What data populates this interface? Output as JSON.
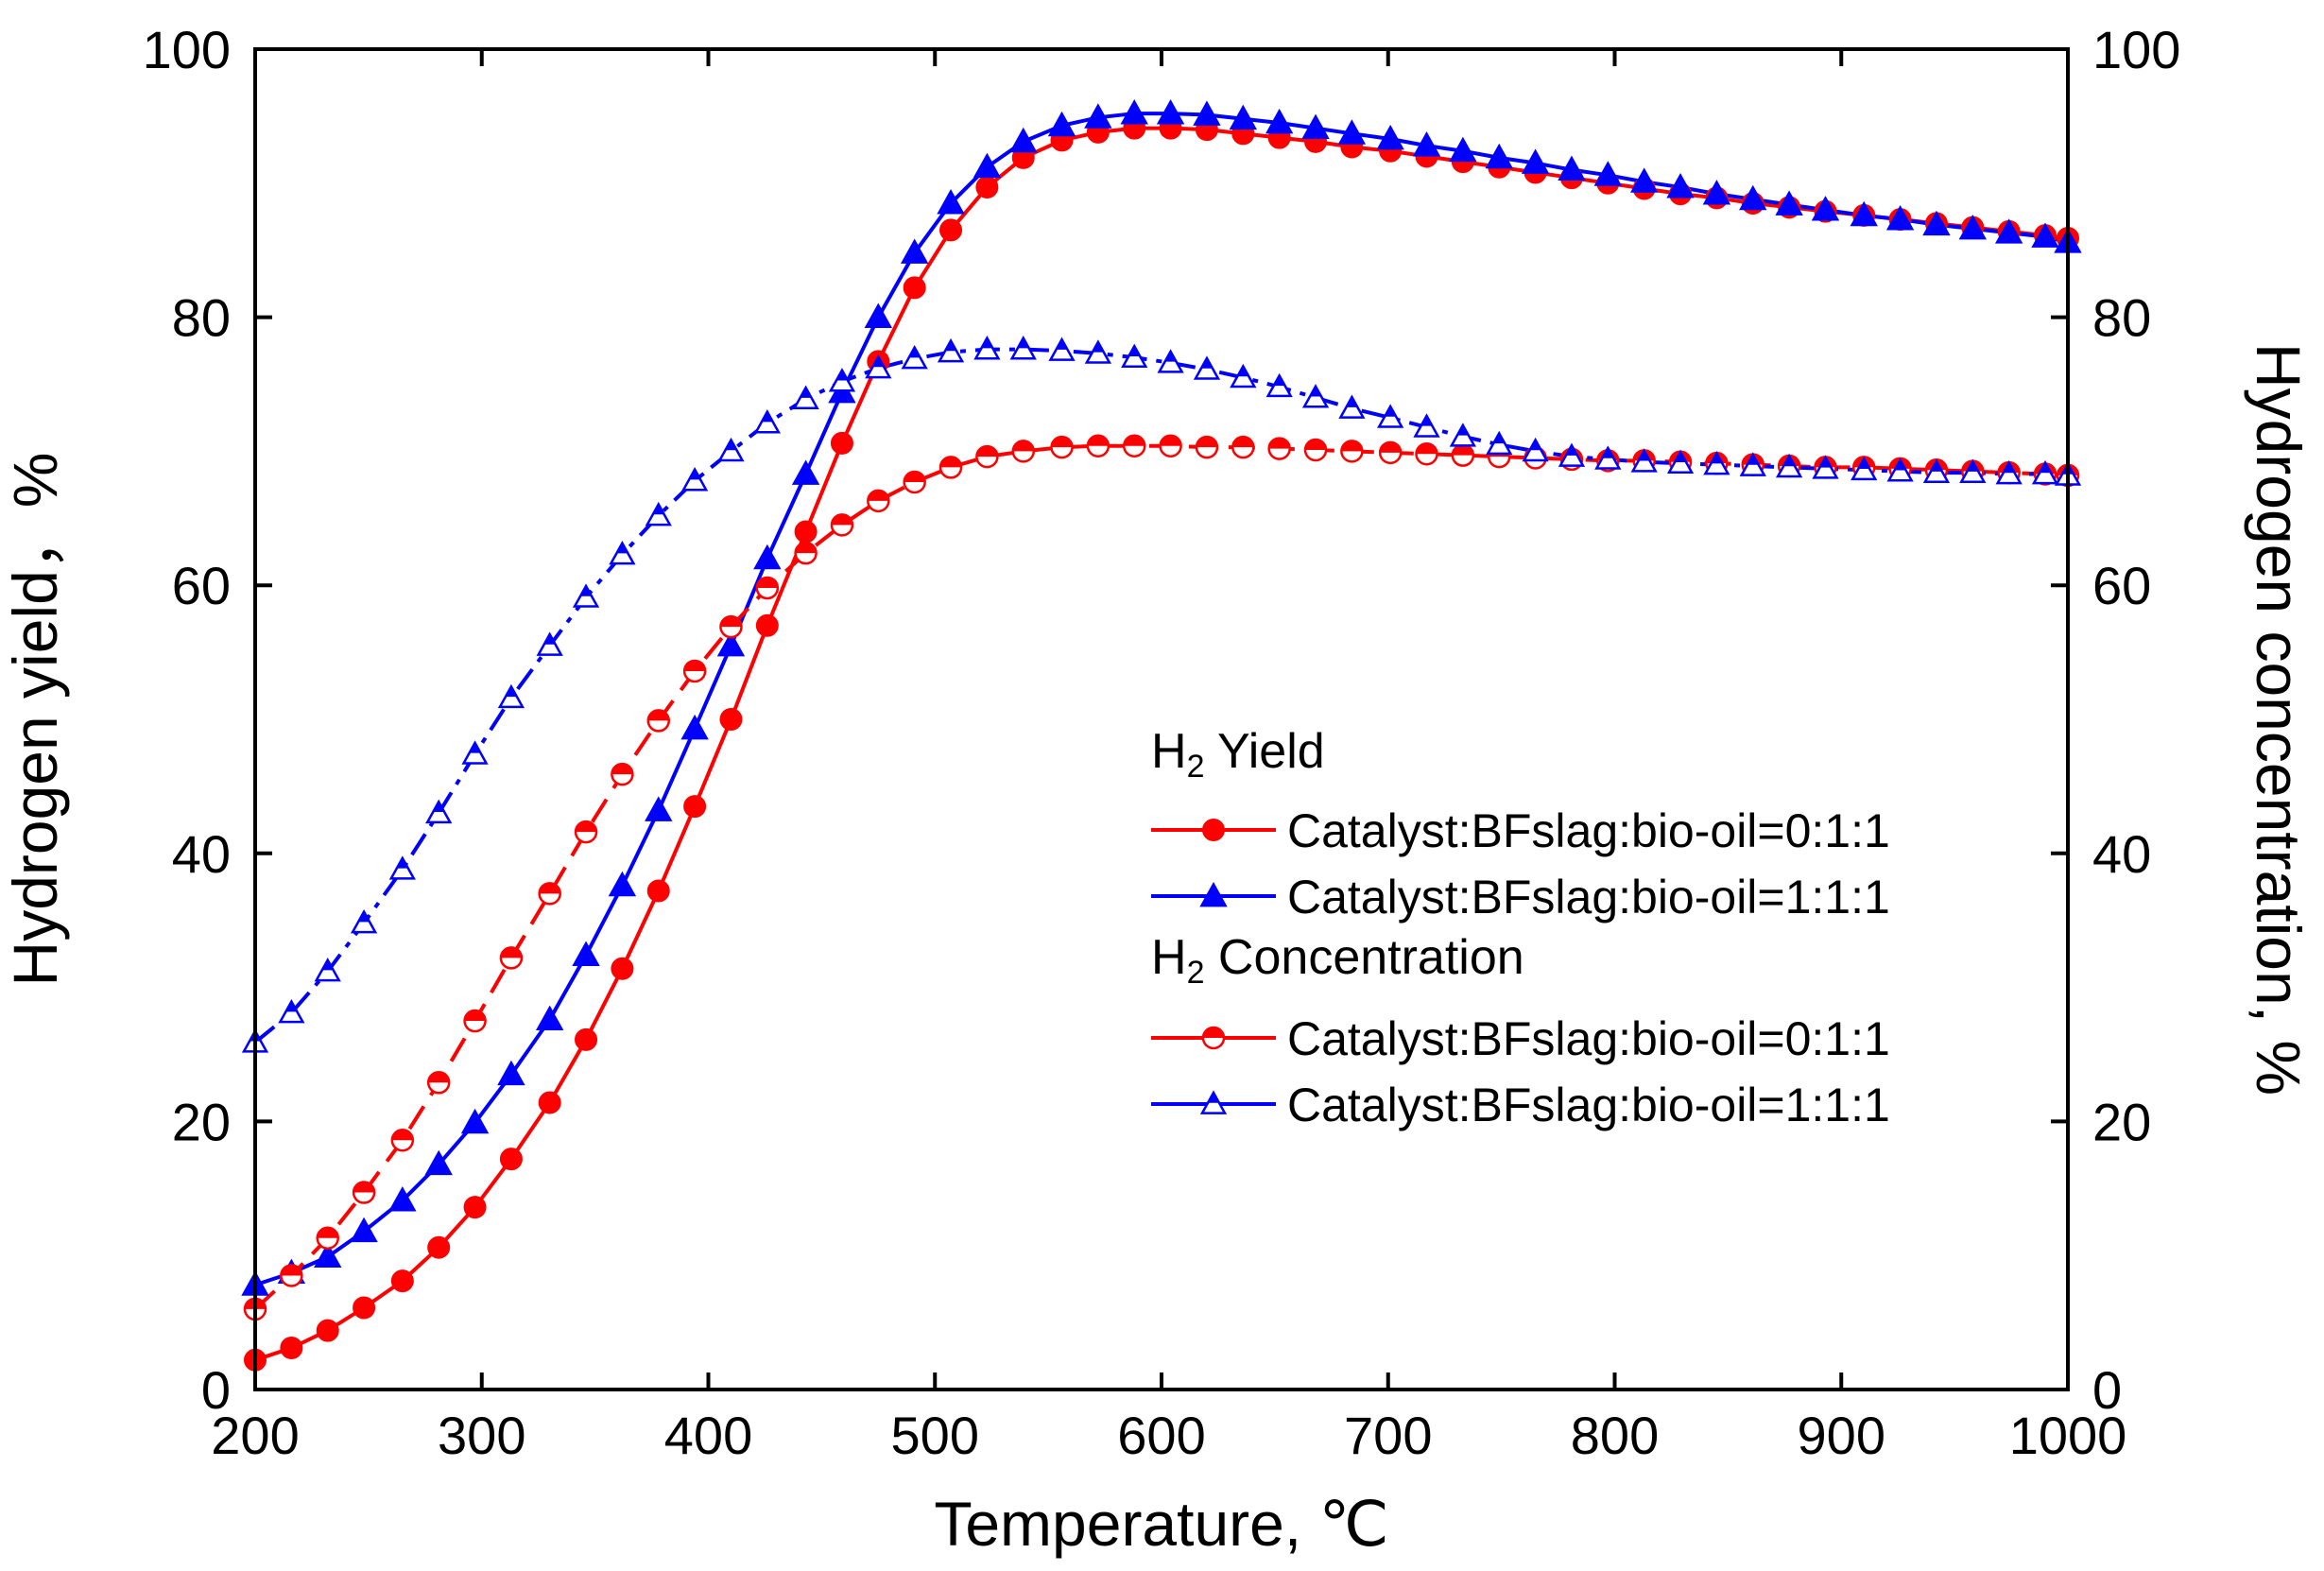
{
  "chart_data": {
    "type": "line",
    "title": "",
    "xlabel": "Temperature, ℃",
    "ylabel": "Hydrogen yield，%",
    "y2label": "Hydrogen concentration, %",
    "xlim": [
      200,
      1000
    ],
    "ylim": [
      0,
      100
    ],
    "y2lim": [
      0,
      100
    ],
    "xticks": [
      200,
      300,
      400,
      500,
      600,
      700,
      800,
      900,
      1000
    ],
    "yticks": [
      0,
      20,
      40,
      60,
      80,
      100
    ],
    "y2ticks": [
      0,
      20,
      40,
      60,
      80,
      100
    ],
    "x": [
      200,
      216,
      232,
      248,
      265,
      281,
      297,
      313,
      330,
      346,
      362,
      378,
      394,
      410,
      426,
      443,
      459,
      475,
      491,
      507,
      523,
      539,
      556,
      572,
      588,
      604,
      620,
      636,
      652,
      668,
      684,
      701,
      717,
      733,
      749,
      765,
      781,
      797,
      813,
      829,
      845,
      861,
      877,
      893,
      910,
      926,
      942,
      958,
      974,
      990,
      1000
    ],
    "legend": {
      "groups": [
        {
          "heading_main": "H",
          "heading_sub": "2",
          "heading_rest": " Yield"
        },
        {
          "heading_main": "H",
          "heading_sub": "2",
          "heading_rest": " Concentration"
        }
      ],
      "position": "center-right"
    },
    "series": [
      {
        "name": "Catalyst:BFslag:bio-oil=0:1:1",
        "group": "H2 Yield",
        "axis": "left",
        "color": "#ff0000",
        "marker": "circle-filled",
        "linestyle": "solid",
        "values": [
          2.2,
          3.1,
          4.4,
          6.1,
          8.1,
          10.6,
          13.6,
          17.2,
          21.4,
          26.1,
          31.4,
          37.2,
          43.5,
          50.0,
          57.0,
          64.0,
          70.6,
          76.7,
          82.2,
          86.5,
          89.7,
          91.9,
          93.2,
          93.8,
          94.1,
          94.1,
          94.0,
          93.7,
          93.4,
          93.1,
          92.7,
          92.4,
          92.0,
          91.6,
          91.2,
          90.8,
          90.4,
          90.0,
          89.6,
          89.2,
          88.9,
          88.5,
          88.2,
          87.9,
          87.6,
          87.3,
          87.0,
          86.7,
          86.4,
          86.1,
          85.9
        ]
      },
      {
        "name": "Catalyst:BFslag:bio-oil=1:1:1",
        "group": "H2 Yield",
        "axis": "left",
        "color": "#0000ff",
        "marker": "triangle-filled",
        "linestyle": "solid",
        "values": [
          7.8,
          8.7,
          9.9,
          11.8,
          14.1,
          16.8,
          19.9,
          23.5,
          27.6,
          32.4,
          37.6,
          43.2,
          49.3,
          55.5,
          62.0,
          68.3,
          74.4,
          80.0,
          84.8,
          88.5,
          91.2,
          93.1,
          94.3,
          94.9,
          95.2,
          95.2,
          95.1,
          94.8,
          94.5,
          94.1,
          93.7,
          93.3,
          92.8,
          92.4,
          91.9,
          91.5,
          91.0,
          90.6,
          90.1,
          89.7,
          89.2,
          88.8,
          88.4,
          88.0,
          87.6,
          87.3,
          86.9,
          86.6,
          86.3,
          86.0,
          85.6
        ]
      },
      {
        "name": "Catalyst:BFslag:bio-oil=0:1:1",
        "group": "H2 Concentration",
        "axis": "right",
        "color": "#ff0000",
        "marker": "circle-half",
        "linestyle": "dashed",
        "values": [
          6.0,
          8.5,
          11.3,
          14.7,
          18.6,
          22.9,
          27.5,
          32.2,
          37.0,
          41.6,
          45.9,
          49.9,
          53.6,
          56.9,
          59.8,
          62.4,
          64.5,
          66.3,
          67.7,
          68.8,
          69.6,
          70.0,
          70.3,
          70.4,
          70.4,
          70.4,
          70.3,
          70.3,
          70.2,
          70.1,
          70.0,
          69.9,
          69.8,
          69.7,
          69.6,
          69.5,
          69.4,
          69.3,
          69.3,
          69.2,
          69.1,
          69.0,
          68.9,
          68.8,
          68.8,
          68.7,
          68.6,
          68.5,
          68.4,
          68.3,
          68.2
        ]
      },
      {
        "name": "Catalyst:BFslag:bio-oil=1:1:1",
        "group": "H2 Concentration",
        "axis": "right",
        "color": "#0000ff",
        "marker": "triangle-half",
        "linestyle": "dashdot",
        "values": [
          25.9,
          28.1,
          31.2,
          34.8,
          38.8,
          43.0,
          47.4,
          51.6,
          55.5,
          59.1,
          62.3,
          65.2,
          67.8,
          70.0,
          72.1,
          73.9,
          75.2,
          76.2,
          76.9,
          77.4,
          77.6,
          77.6,
          77.5,
          77.3,
          77.0,
          76.6,
          76.1,
          75.5,
          74.8,
          74.0,
          73.2,
          72.5,
          71.8,
          71.1,
          70.5,
          70.0,
          69.6,
          69.4,
          69.2,
          69.1,
          69.0,
          68.9,
          68.8,
          68.7,
          68.6,
          68.5,
          68.4,
          68.4,
          68.3,
          68.3,
          68.2
        ]
      }
    ]
  }
}
